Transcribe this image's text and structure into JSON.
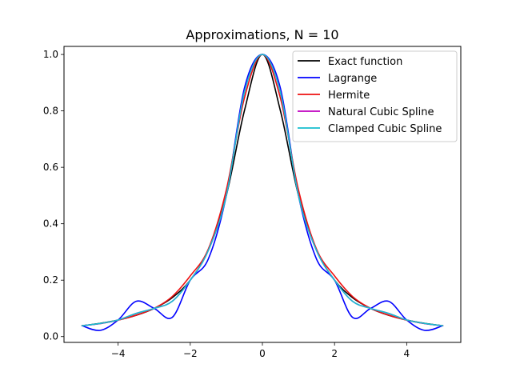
{
  "chart_data": {
    "type": "line",
    "title": "Approximations, N = 10",
    "xlabel": "",
    "ylabel": "",
    "xlim": [
      -5.5,
      5.5
    ],
    "ylim": [
      -0.0206,
      1.0286
    ],
    "xticks": [
      -4,
      -2,
      0,
      2,
      4
    ],
    "xtick_labels": [
      "−4",
      "−2",
      "0",
      "2",
      "4"
    ],
    "yticks": [
      0.0,
      0.2,
      0.4,
      0.6,
      0.8,
      1.0
    ],
    "ytick_labels": [
      "0.0",
      "0.2",
      "0.4",
      "0.6",
      "0.8",
      "1.0"
    ],
    "grid": false,
    "legend_position": "top-right",
    "x": [
      -5.0,
      -4.5,
      -4.0,
      -3.5,
      -3.0,
      -2.5,
      -2.0,
      -1.5,
      -1.0,
      -0.5,
      0.0,
      0.5,
      1.0,
      1.5,
      2.0,
      2.5,
      3.0,
      3.5,
      4.0,
      4.5,
      5.0
    ],
    "series": [
      {
        "name": "Exact function",
        "color": "#000000",
        "values": [
          0.0385,
          0.047,
          0.0588,
          0.0755,
          0.1,
          0.1379,
          0.2,
          0.3077,
          0.5,
          0.8,
          1.0,
          0.8,
          0.5,
          0.3077,
          0.2,
          0.1379,
          0.1,
          0.0755,
          0.0588,
          0.047,
          0.0385
        ]
      },
      {
        "name": "Lagrange",
        "color": "#0000ff",
        "values": [
          0.0385,
          0.022,
          0.0588,
          0.125,
          0.1,
          0.068,
          0.2,
          0.275,
          0.5,
          0.88,
          1.0,
          0.88,
          0.5,
          0.275,
          0.2,
          0.068,
          0.1,
          0.125,
          0.0588,
          0.022,
          0.0385
        ]
      },
      {
        "name": "Hermite",
        "color": "#ee1111",
        "values": [
          0.0385,
          0.046,
          0.058,
          0.076,
          0.1,
          0.142,
          0.215,
          0.31,
          0.52,
          0.845,
          1.0,
          0.845,
          0.52,
          0.31,
          0.215,
          0.142,
          0.1,
          0.076,
          0.058,
          0.046,
          0.0385
        ]
      },
      {
        "name": "Natural Cubic Spline",
        "color": "#bf00bf",
        "values": [
          0.0385,
          0.046,
          0.0588,
          0.082,
          0.1,
          0.125,
          0.2,
          0.305,
          0.5,
          0.865,
          1.0,
          0.865,
          0.5,
          0.305,
          0.2,
          0.125,
          0.1,
          0.082,
          0.0588,
          0.046,
          0.0385
        ]
      },
      {
        "name": "Clamped Cubic Spline",
        "color": "#17becf",
        "values": [
          0.0385,
          0.0465,
          0.0588,
          0.082,
          0.1,
          0.125,
          0.2,
          0.305,
          0.5,
          0.865,
          1.0,
          0.865,
          0.5,
          0.305,
          0.2,
          0.125,
          0.1,
          0.082,
          0.0588,
          0.0465,
          0.0385
        ]
      }
    ]
  }
}
